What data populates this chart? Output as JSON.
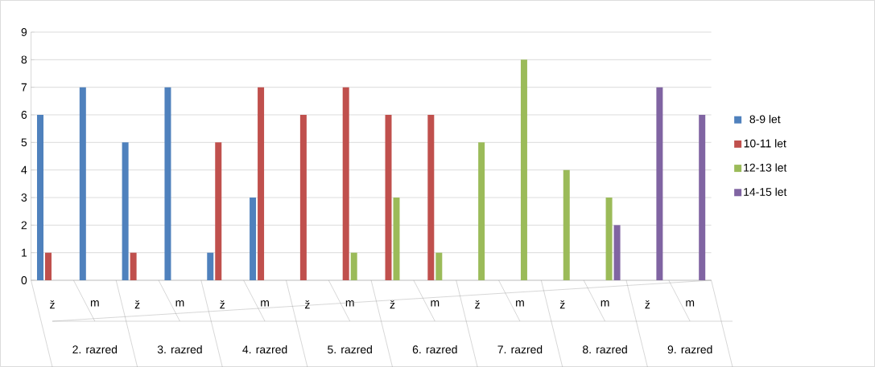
{
  "chart_data": {
    "type": "bar",
    "categories": [
      "ž",
      "m",
      "ž",
      "m",
      "ž",
      "m",
      "ž",
      "m",
      "ž",
      "m",
      "ž",
      "m",
      "ž",
      "m",
      "ž",
      "m"
    ],
    "series": [
      {
        "name": "8-9 let",
        "color": "#4f81bd",
        "values": [
          6,
          7,
          5,
          7,
          1,
          3,
          0,
          0,
          0,
          0,
          0,
          0,
          0,
          0,
          0,
          0
        ]
      },
      {
        "name": "10-11 let",
        "color": "#c0504d",
        "values": [
          1,
          0,
          1,
          0,
          5,
          7,
          6,
          7,
          6,
          6,
          0,
          0,
          0,
          0,
          0,
          0
        ]
      },
      {
        "name": "12-13 let",
        "color": "#9bbb59",
        "values": [
          0,
          0,
          0,
          0,
          0,
          0,
          0,
          1,
          3,
          1,
          5,
          8,
          4,
          3,
          0,
          0
        ]
      },
      {
        "name": "14-15 let",
        "color": "#8064a2",
        "values": [
          0,
          0,
          0,
          0,
          0,
          0,
          0,
          0,
          0,
          0,
          0,
          0,
          0,
          2,
          7,
          6
        ]
      }
    ],
    "annotations": [
      "2. razred",
      "3. razred",
      "4. razred",
      "5. razred",
      "6. razred",
      "7. razred",
      "8. razred",
      "9. razred"
    ],
    "ylim": [
      0,
      9
    ],
    "yticks": [
      0,
      1,
      2,
      3,
      4,
      5,
      6,
      7,
      8,
      9
    ],
    "grid": "y",
    "legend": "right"
  }
}
